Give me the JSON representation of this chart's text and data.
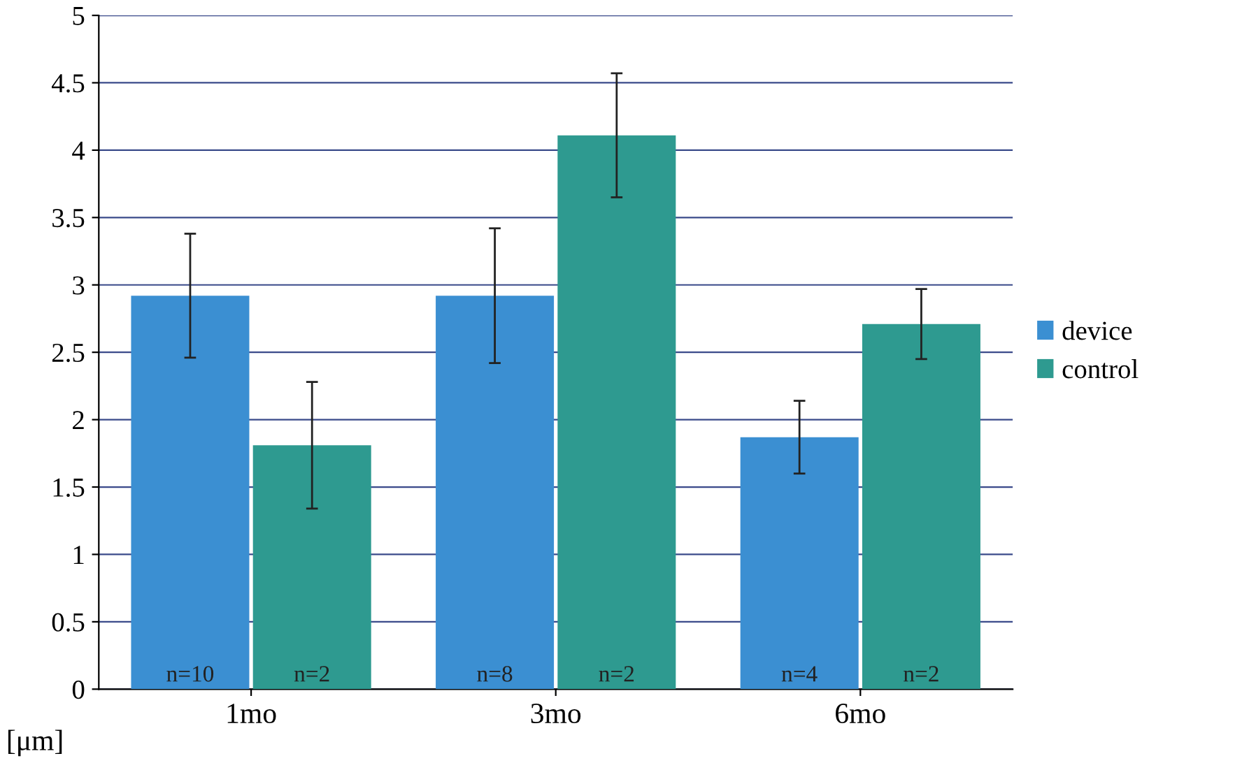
{
  "chart_data": {
    "type": "bar",
    "ylabel": "[μm]",
    "categories": [
      "1mo",
      "3mo",
      "6mo"
    ],
    "series": [
      {
        "name": "device",
        "color": "#3b8fd2",
        "values": [
          2.92,
          2.92,
          1.87
        ],
        "errors": [
          0.46,
          0.5,
          0.27
        ]
      },
      {
        "name": "control",
        "color": "#2e9a90",
        "values": [
          1.81,
          4.11,
          2.71
        ],
        "errors": [
          0.47,
          0.46,
          0.26
        ]
      }
    ],
    "annotations": [
      "n=10",
      "n=2",
      "n=8",
      "n=2",
      "n=4",
      "n=2"
    ],
    "ylim": [
      0,
      5
    ],
    "yticks": [
      0,
      0.5,
      1,
      1.5,
      2,
      2.5,
      3,
      3.5,
      4,
      4.5,
      5
    ],
    "grid": "y",
    "legend": "right"
  }
}
